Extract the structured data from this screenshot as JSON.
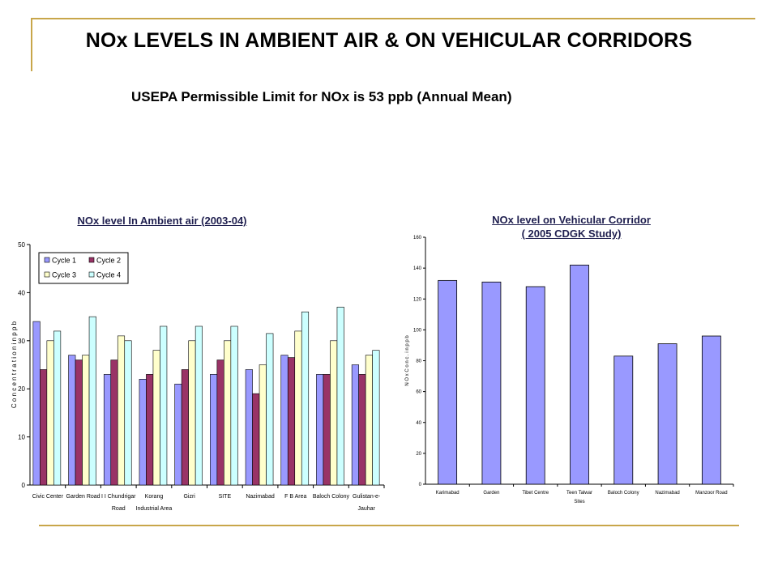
{
  "slide": {
    "title": "NOx LEVELS IN AMBIENT AIR & ON VEHICULAR CORRIDORS",
    "subtitle": "USEPA Permissible Limit  for NOx is 53 ppb (Annual Mean)"
  },
  "colors": {
    "rule": "#c8a64a",
    "cycle1": "#9999ff",
    "cycle2": "#993366",
    "cycle3": "#ffffcc",
    "cycle4": "#ccffff",
    "corridor": "#9999ff"
  },
  "chart_data": [
    {
      "type": "bar",
      "title": "NOx level In Ambient air (2003-04)",
      "ylabel": "C o n c e n t r a t i o n  i n  p p b",
      "xlabel": "",
      "ylim": [
        0,
        50
      ],
      "yticks": [
        "0",
        "10",
        "20",
        "30",
        "40",
        "50"
      ],
      "legend_position": "top-left",
      "categories": [
        "Civic Center",
        "Garden Road",
        "I I Chundrigar Road",
        "Korang Industrial Area",
        "Gizri",
        "SITE",
        "Nazimabad",
        "F B Area",
        "Baloch Colony",
        "Gulistan-e-Jauhar"
      ],
      "category_lines": [
        [
          "Civic Center"
        ],
        [
          "Garden Road"
        ],
        [
          "I I Chundrigar",
          "Road"
        ],
        [
          "Korang",
          "Industrial Area"
        ],
        [
          "Gizri"
        ],
        [
          "SITE"
        ],
        [
          "Nazimabad"
        ],
        [
          "F B Area"
        ],
        [
          "Baloch Colony"
        ],
        [
          "Gulistan-e-",
          "Jauhar"
        ]
      ],
      "series": [
        {
          "name": "Cycle 1",
          "color": "#9999ff",
          "values": [
            34,
            27,
            23,
            22,
            21,
            23,
            24,
            27,
            23,
            25
          ]
        },
        {
          "name": "Cycle 2",
          "color": "#993366",
          "values": [
            24,
            26,
            26,
            23,
            24,
            26,
            19,
            26.5,
            23,
            23
          ]
        },
        {
          "name": "Cycle 3",
          "color": "#ffffcc",
          "values": [
            30,
            27,
            31,
            28,
            30,
            30,
            25,
            32,
            30,
            27
          ]
        },
        {
          "name": "Cycle 4",
          "color": "#ccffff",
          "values": [
            32,
            35,
            30,
            33,
            33,
            33,
            31.5,
            36,
            37,
            28
          ]
        }
      ]
    },
    {
      "type": "bar",
      "title": "NOx level on Vehicular Corridor",
      "subtitle": "( 2005 CDGK Study)",
      "ylabel": "N O x  C o n c . i n  p p b",
      "xlabel": "Sites",
      "ylim": [
        0,
        160
      ],
      "yticks": [
        "0",
        "20",
        "40",
        "60",
        "80",
        "100",
        "120",
        "140",
        "160"
      ],
      "categories": [
        "Karimabad",
        "Garden",
        "Tibet Centre",
        "Teen Talwar",
        "Baloch Colony",
        "Nazimabad",
        "Manzoor Road"
      ],
      "values": [
        132,
        131,
        128,
        142,
        83,
        91,
        96
      ],
      "color": "#9999ff"
    }
  ]
}
